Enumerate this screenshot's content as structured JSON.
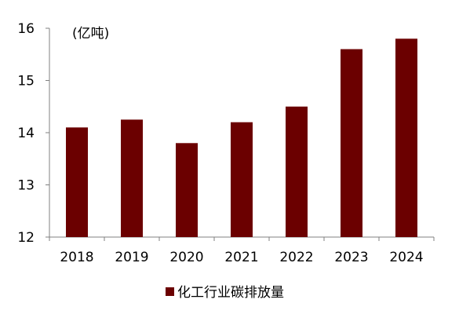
{
  "chart_data": {
    "type": "bar",
    "unit_label": "(亿吨)",
    "categories": [
      "2018",
      "2019",
      "2020",
      "2021",
      "2022",
      "2023",
      "2024"
    ],
    "series": [
      {
        "name": "化工行业碳排放量",
        "color": "#6b0000",
        "values": [
          14.1,
          14.25,
          13.8,
          14.2,
          14.5,
          15.6,
          15.8
        ]
      }
    ],
    "ylim": [
      12,
      16
    ],
    "yticks": [
      12,
      13,
      14,
      15,
      16
    ],
    "grid": false,
    "legend_position": "bottom"
  }
}
